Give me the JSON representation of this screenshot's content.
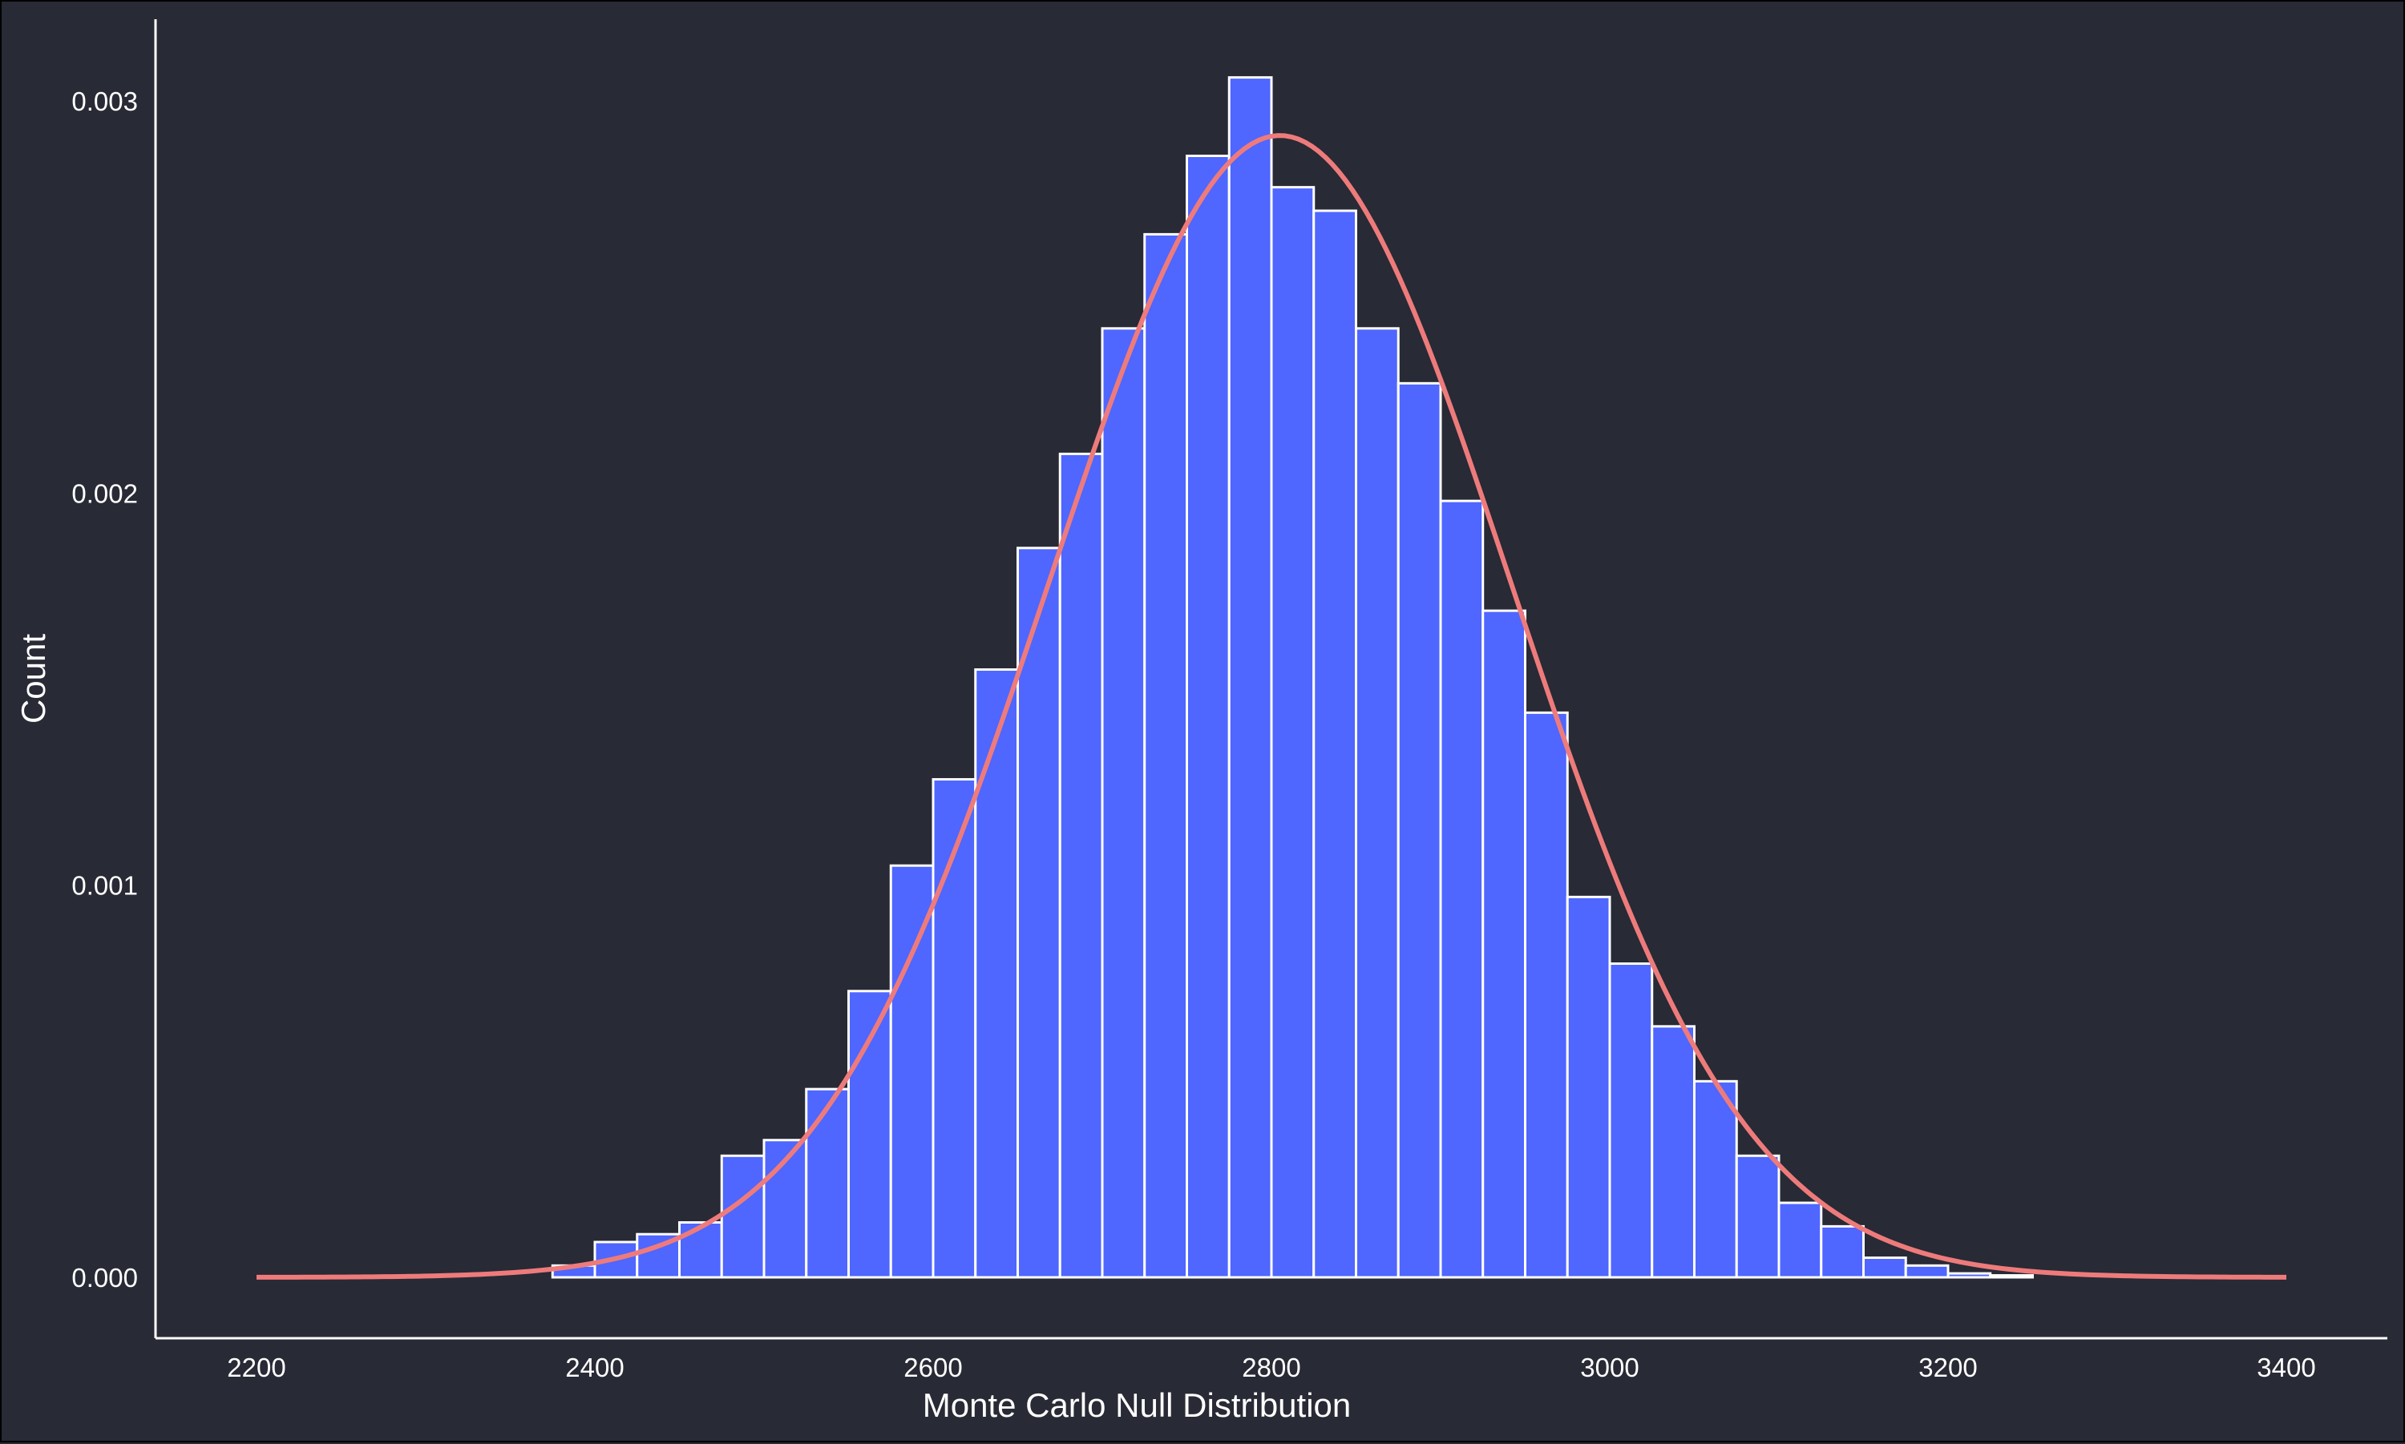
{
  "chart_data": {
    "type": "bar",
    "title": "",
    "xlabel": "Monte Carlo Null Distribution",
    "ylabel": "Count",
    "xlim": [
      2200,
      3400
    ],
    "ylim": [
      0,
      0.003
    ],
    "x_ticks": [
      "2200",
      "2400",
      "2600",
      "2800",
      "3000",
      "3200",
      "3400"
    ],
    "y_ticks": [
      "0.000",
      "0.001",
      "0.002",
      "0.003"
    ],
    "bin_width": 25,
    "bins_start": [
      2375,
      2400,
      2425,
      2450,
      2475,
      2500,
      2525,
      2550,
      2575,
      2600,
      2625,
      2650,
      2675,
      2700,
      2725,
      2750,
      2775,
      2800,
      2825,
      2850,
      2875,
      2900,
      2925,
      2950,
      2975,
      3000,
      3025,
      3050,
      3075,
      3100,
      3125,
      3150,
      3175,
      3200,
      3225
    ],
    "values": [
      3e-05,
      9e-05,
      0.00011,
      0.00014,
      0.00031,
      0.00035,
      0.00048,
      0.00073,
      0.00105,
      0.00127,
      0.00155,
      0.00186,
      0.0021,
      0.00242,
      0.00266,
      0.00286,
      0.00306,
      0.00278,
      0.00272,
      0.00242,
      0.00228,
      0.00198,
      0.0017,
      0.00144,
      0.00097,
      0.0008,
      0.00064,
      0.0005,
      0.00031,
      0.00019,
      0.00013,
      5e-05,
      3e-05,
      1e-05,
      5e-06
    ],
    "density_curve": {
      "type": "normal",
      "mean": 2805,
      "sd": 137,
      "x_range": [
        2200,
        3400
      ]
    },
    "grid": false,
    "colors": {
      "background": "#282a35",
      "bar_fill": "#4f66ff",
      "bar_stroke": "#ffffff",
      "curve": "#ee7b7b",
      "axis": "#ffffff",
      "text": "#ffffff"
    }
  }
}
